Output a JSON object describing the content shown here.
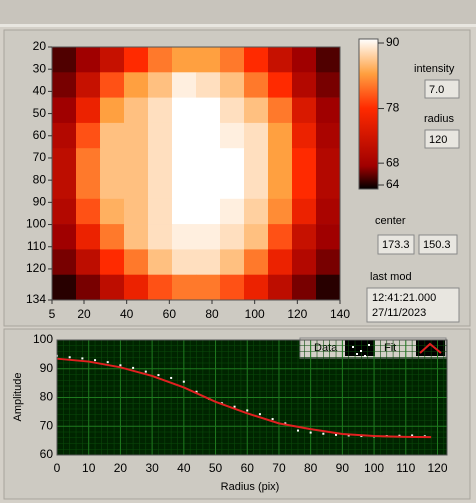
{
  "chart_data": [
    {
      "type": "heatmap",
      "xlim": [
        5,
        140
      ],
      "ylim": [
        134,
        20
      ],
      "xticks": [
        5,
        20,
        40,
        60,
        80,
        100,
        120,
        140
      ],
      "yticks": [
        20,
        30,
        40,
        50,
        60,
        70,
        80,
        90,
        100,
        110,
        120,
        134
      ],
      "zlim": [
        64,
        90
      ],
      "zticks": [
        90,
        78,
        68,
        64
      ],
      "colormap": [
        {
          "value": 64,
          "color": "#000000"
        },
        {
          "value": 68,
          "color": "#a00000"
        },
        {
          "value": 78,
          "color": "#ff2a00"
        },
        {
          "value": 84,
          "color": "#ffa040"
        },
        {
          "value": 90,
          "color": "#ffffff"
        }
      ],
      "z": [
        [
          66,
          68,
          72,
          78,
          82,
          84,
          84,
          82,
          78,
          72,
          68,
          66
        ],
        [
          67,
          72,
          80,
          84,
          86,
          89,
          88,
          86,
          82,
          78,
          70,
          67
        ],
        [
          68,
          76,
          84,
          86,
          88,
          90,
          90,
          88,
          86,
          82,
          74,
          68
        ],
        [
          70,
          80,
          86,
          86,
          88,
          90,
          90,
          89,
          88,
          84,
          76,
          69
        ],
        [
          71,
          82,
          86,
          86,
          88,
          90,
          90,
          90,
          88,
          84,
          78,
          70
        ],
        [
          71,
          82,
          86,
          86,
          88,
          90,
          90,
          90,
          88,
          84,
          78,
          70
        ],
        [
          70,
          80,
          85,
          86,
          88,
          90,
          90,
          89,
          87,
          83,
          76,
          69
        ],
        [
          68,
          76,
          82,
          86,
          88,
          89,
          89,
          88,
          86,
          80,
          72,
          68
        ],
        [
          67,
          71,
          78,
          82,
          86,
          88,
          88,
          86,
          82,
          76,
          70,
          67
        ],
        [
          65,
          67,
          71,
          76,
          80,
          82,
          82,
          80,
          76,
          71,
          67,
          65
        ]
      ]
    },
    {
      "type": "line",
      "xlabel": "Radius (pix)",
      "ylabel": "Amplitude",
      "xlim": [
        0,
        123
      ],
      "ylim": [
        60,
        100
      ],
      "xticks": [
        0,
        10,
        20,
        30,
        40,
        50,
        60,
        70,
        80,
        90,
        100,
        110,
        120
      ],
      "yticks": [
        60,
        70,
        80,
        90,
        100
      ],
      "grid": true,
      "series": [
        {
          "name": "Data",
          "color": "#ffffff",
          "style": "points",
          "x": [
            0,
            4,
            8,
            12,
            16,
            20,
            24,
            28,
            32,
            36,
            40,
            44,
            48,
            52,
            56,
            60,
            64,
            68,
            72,
            76,
            80,
            84,
            88,
            92,
            96,
            100,
            104,
            108,
            112,
            116
          ],
          "values": [
            94.5,
            94,
            93.6,
            93,
            92.3,
            91.2,
            90.3,
            89,
            87.8,
            86.8,
            85.5,
            82,
            79.5,
            78,
            76.8,
            75.5,
            74.2,
            72.5,
            71,
            68.5,
            67.8,
            67.4,
            67,
            66.8,
            66.6,
            66.5,
            66.6,
            66.7,
            66.8,
            66.5
          ]
        },
        {
          "name": "Fit",
          "color": "#e02020",
          "style": "line",
          "x": [
            0,
            10,
            20,
            30,
            40,
            50,
            60,
            70,
            80,
            90,
            100,
            110,
            118
          ],
          "values": [
            93.5,
            92.5,
            90.5,
            87.5,
            83.5,
            78.5,
            74.5,
            71,
            69,
            67.3,
            66.6,
            66.3,
            66.2
          ]
        }
      ]
    }
  ],
  "indicators": {
    "intensity": {
      "label": "intensity",
      "value": "7.0"
    },
    "radius": {
      "label": "radius",
      "value": "120"
    },
    "center": {
      "label": "center",
      "values": [
        "173.3",
        "150.3"
      ]
    },
    "last_mod": {
      "label": "last mod",
      "lines": [
        "12:41:21.000",
        "27/11/2023"
      ]
    }
  }
}
